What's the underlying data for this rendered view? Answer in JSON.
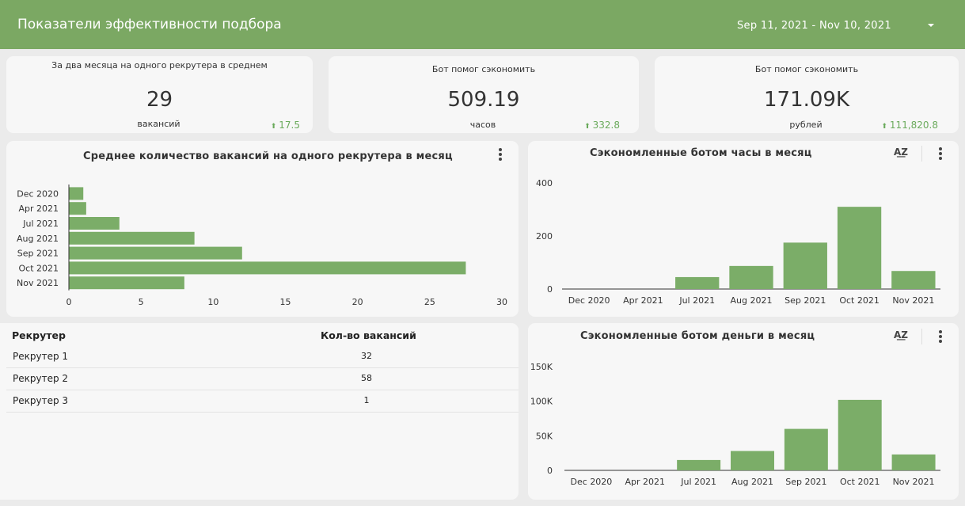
{
  "header": {
    "title": "Показатели эффективности подбора",
    "date_range": "Sep 11, 2021 - Nov 10, 2021"
  },
  "kpis": [
    {
      "label": "За два месяца на одного рекрутера в среднем",
      "value": "29",
      "unit": "вакансий",
      "delta": "17.5"
    },
    {
      "label": "Бот помог сэкономить",
      "value": "509.19",
      "unit": "часов",
      "delta": "332.8"
    },
    {
      "label": "Бот помог сэкономить",
      "value": "171.09K",
      "unit": "рублей",
      "delta": "111,820.8"
    }
  ],
  "vacancies_chart": {
    "title": "Среднее количество вакансий на одного рекрутера в месяц",
    "chart_data": {
      "type": "bar",
      "orientation": "horizontal",
      "categories": [
        "Dec 2020",
        "Apr 2021",
        "Jul 2021",
        "Aug 2021",
        "Sep 2021",
        "Oct 2021",
        "Nov 2021"
      ],
      "values": [
        1,
        1.2,
        3.5,
        8.7,
        12,
        27.5,
        8
      ],
      "xlim": [
        0,
        30
      ],
      "ticks": [
        "0",
        "5",
        "10",
        "15",
        "20",
        "25",
        "30"
      ],
      "color": "#7bad68"
    }
  },
  "hours_chart": {
    "title": "Сэкономленные ботом часы в месяц",
    "chart_data": {
      "type": "bar",
      "categories": [
        "Dec 2020",
        "Apr 2021",
        "Jul 2021",
        "Aug 2021",
        "Sep 2021",
        "Oct 2021",
        "Nov 2021"
      ],
      "values": [
        0,
        0,
        45,
        87,
        175,
        310,
        68
      ],
      "ylim": [
        0,
        400
      ],
      "ticks": [
        "0",
        "200",
        "400"
      ],
      "color": "#7bad68"
    }
  },
  "money_chart": {
    "title": "Сэкономленные ботом деньги в месяц",
    "chart_data": {
      "type": "bar",
      "categories": [
        "Dec 2020",
        "Apr 2021",
        "Jul 2021",
        "Aug 2021",
        "Sep 2021",
        "Oct 2021",
        "Nov 2021"
      ],
      "values": [
        0,
        0,
        15000,
        28000,
        60000,
        102000,
        23000
      ],
      "ylim": [
        0,
        150000
      ],
      "ticks": [
        "0",
        "50K",
        "100K",
        "150K"
      ],
      "color": "#7bad68"
    }
  },
  "table": {
    "headers": [
      "Рекрутер",
      "Кол-во вакансий"
    ],
    "rows": [
      {
        "name": "Рекрутер 1",
        "count": "32"
      },
      {
        "name": "Рекрутер 2",
        "count": "58"
      },
      {
        "name": "Рекрутер 3",
        "count": "1"
      }
    ]
  },
  "icons": {
    "sort": "sort-az-icon",
    "menu": "more-vert-icon",
    "dropdown": "chevron-down-icon",
    "delta": "arrow-up-icon"
  }
}
